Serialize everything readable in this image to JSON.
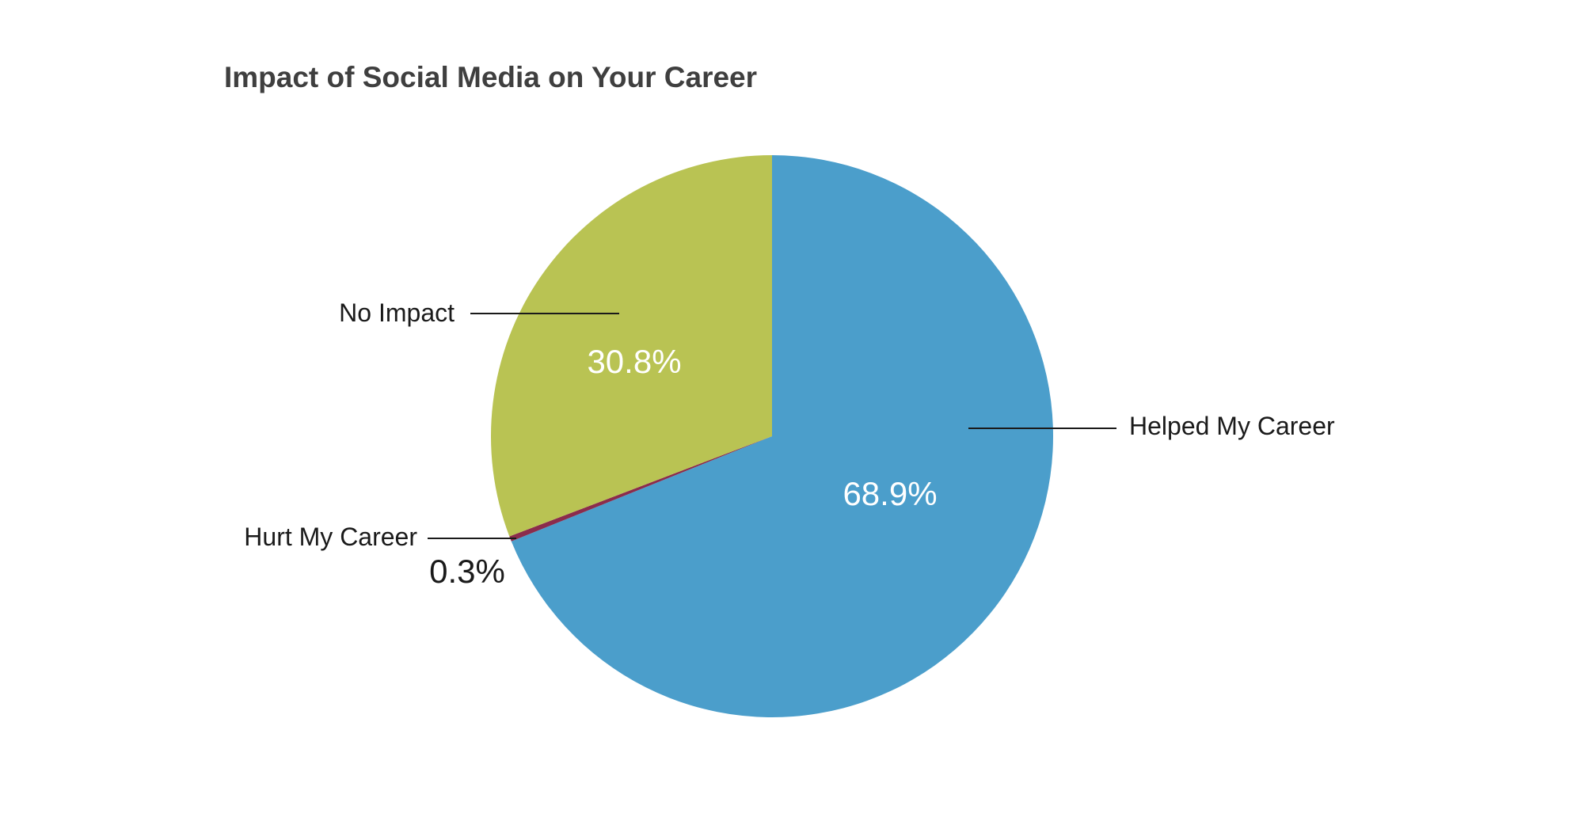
{
  "chart_data": {
    "type": "pie",
    "title": "Impact of Social Media on Your Career",
    "start_angle_deg": 0,
    "direction": "clockwise",
    "slices": [
      {
        "name": "Helped My Career",
        "value": 68.9,
        "value_label": "68.9%",
        "color": "#4b9ecb"
      },
      {
        "name": "Hurt My Career",
        "value": 0.3,
        "value_label": "0.3%",
        "color": "#8b2c4c"
      },
      {
        "name": "No Impact",
        "value": 30.8,
        "value_label": "30.8%",
        "color": "#b9c353"
      }
    ]
  }
}
